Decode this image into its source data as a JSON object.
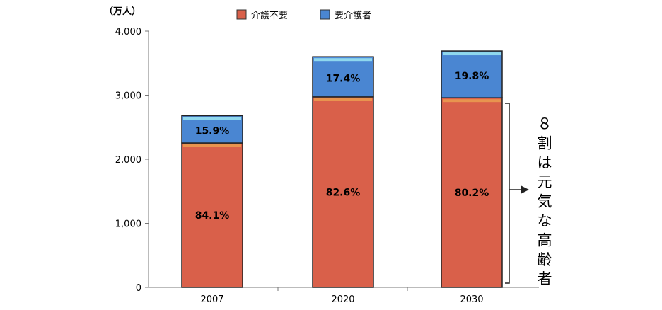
{
  "chart_data": {
    "type": "bar",
    "stacked": true,
    "unit_label": "（万人）",
    "categories": [
      "2007",
      "2020",
      "2030"
    ],
    "totals": [
      2680,
      3600,
      3690
    ],
    "yticks": [
      "0",
      "1,000",
      "2,000",
      "3,000",
      "4,000"
    ],
    "ylim": [
      0,
      4000
    ],
    "series": [
      {
        "name": "介護不要",
        "color": "#d9604a",
        "percent_labels": [
          "84.1%",
          "82.6%",
          "80.2%"
        ],
        "shares": [
          0.841,
          0.826,
          0.802
        ]
      },
      {
        "name": "要介護者",
        "color": "#4a86d2",
        "percent_labels": [
          "15.9%",
          "17.4%",
          "19.8%"
        ],
        "shares": [
          0.159,
          0.174,
          0.198
        ]
      }
    ],
    "legend_position": "top-center",
    "annotation": "８割は元気な高齢者"
  }
}
